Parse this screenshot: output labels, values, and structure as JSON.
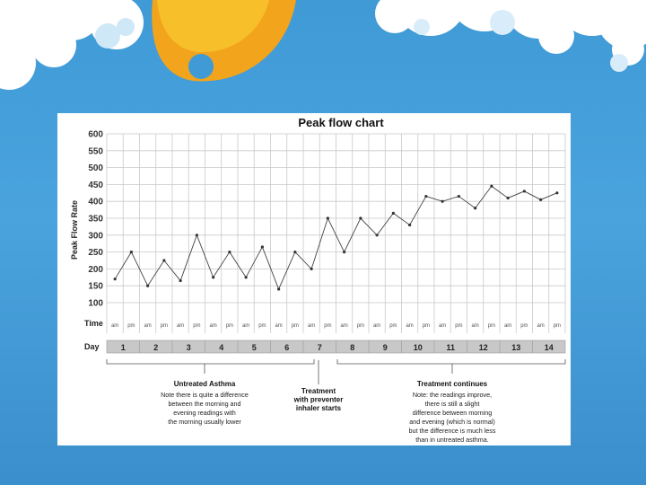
{
  "chart_data": {
    "type": "line",
    "title": "Peak flow chart",
    "ylabel": "Peak Flow Rate",
    "row_labels": {
      "time": "Time",
      "day": "Day"
    },
    "ylim": [
      100,
      600
    ],
    "yticks": [
      100,
      150,
      200,
      250,
      300,
      350,
      400,
      450,
      500,
      550,
      600
    ],
    "days": [
      "1",
      "2",
      "3",
      "4",
      "5",
      "6",
      "7",
      "8",
      "9",
      "10",
      "11",
      "12",
      "13",
      "14"
    ],
    "x": [
      "am",
      "pm",
      "am",
      "pm",
      "am",
      "pm",
      "am",
      "pm",
      "am",
      "pm",
      "am",
      "pm",
      "am",
      "pm",
      "am",
      "pm",
      "am",
      "pm",
      "am",
      "pm",
      "am",
      "pm",
      "am",
      "pm",
      "am",
      "pm",
      "am",
      "pm"
    ],
    "series": [
      {
        "values": [
          170,
          250,
          150,
          225,
          165,
          300,
          175,
          250,
          175,
          265,
          140,
          250,
          200,
          350,
          250,
          350,
          300,
          365,
          330,
          415,
          400,
          415,
          380,
          445,
          410,
          430,
          405,
          425
        ]
      }
    ],
    "grid": true,
    "colors": {
      "line": "#444444",
      "marker": "#333333",
      "grid": "#c9c9c9",
      "day_bar": "#c8c8c8"
    },
    "annotations": [
      {
        "title": "Untreated Asthma",
        "lines": [
          "Note there is quite a difference",
          "between the morning and",
          "evening readings with",
          "the morning usually lower"
        ]
      },
      {
        "title": "Treatment",
        "title_lines": [
          "Treatment",
          "with preventer",
          "inhaler starts"
        ],
        "lines": []
      },
      {
        "title": "Treatment continues",
        "lines": [
          "Note: the readings improve,",
          "there is still a slight",
          "difference between morning",
          "and evening (which is normal)",
          "but the difference is much less",
          "than in untreated asthma."
        ]
      }
    ]
  }
}
